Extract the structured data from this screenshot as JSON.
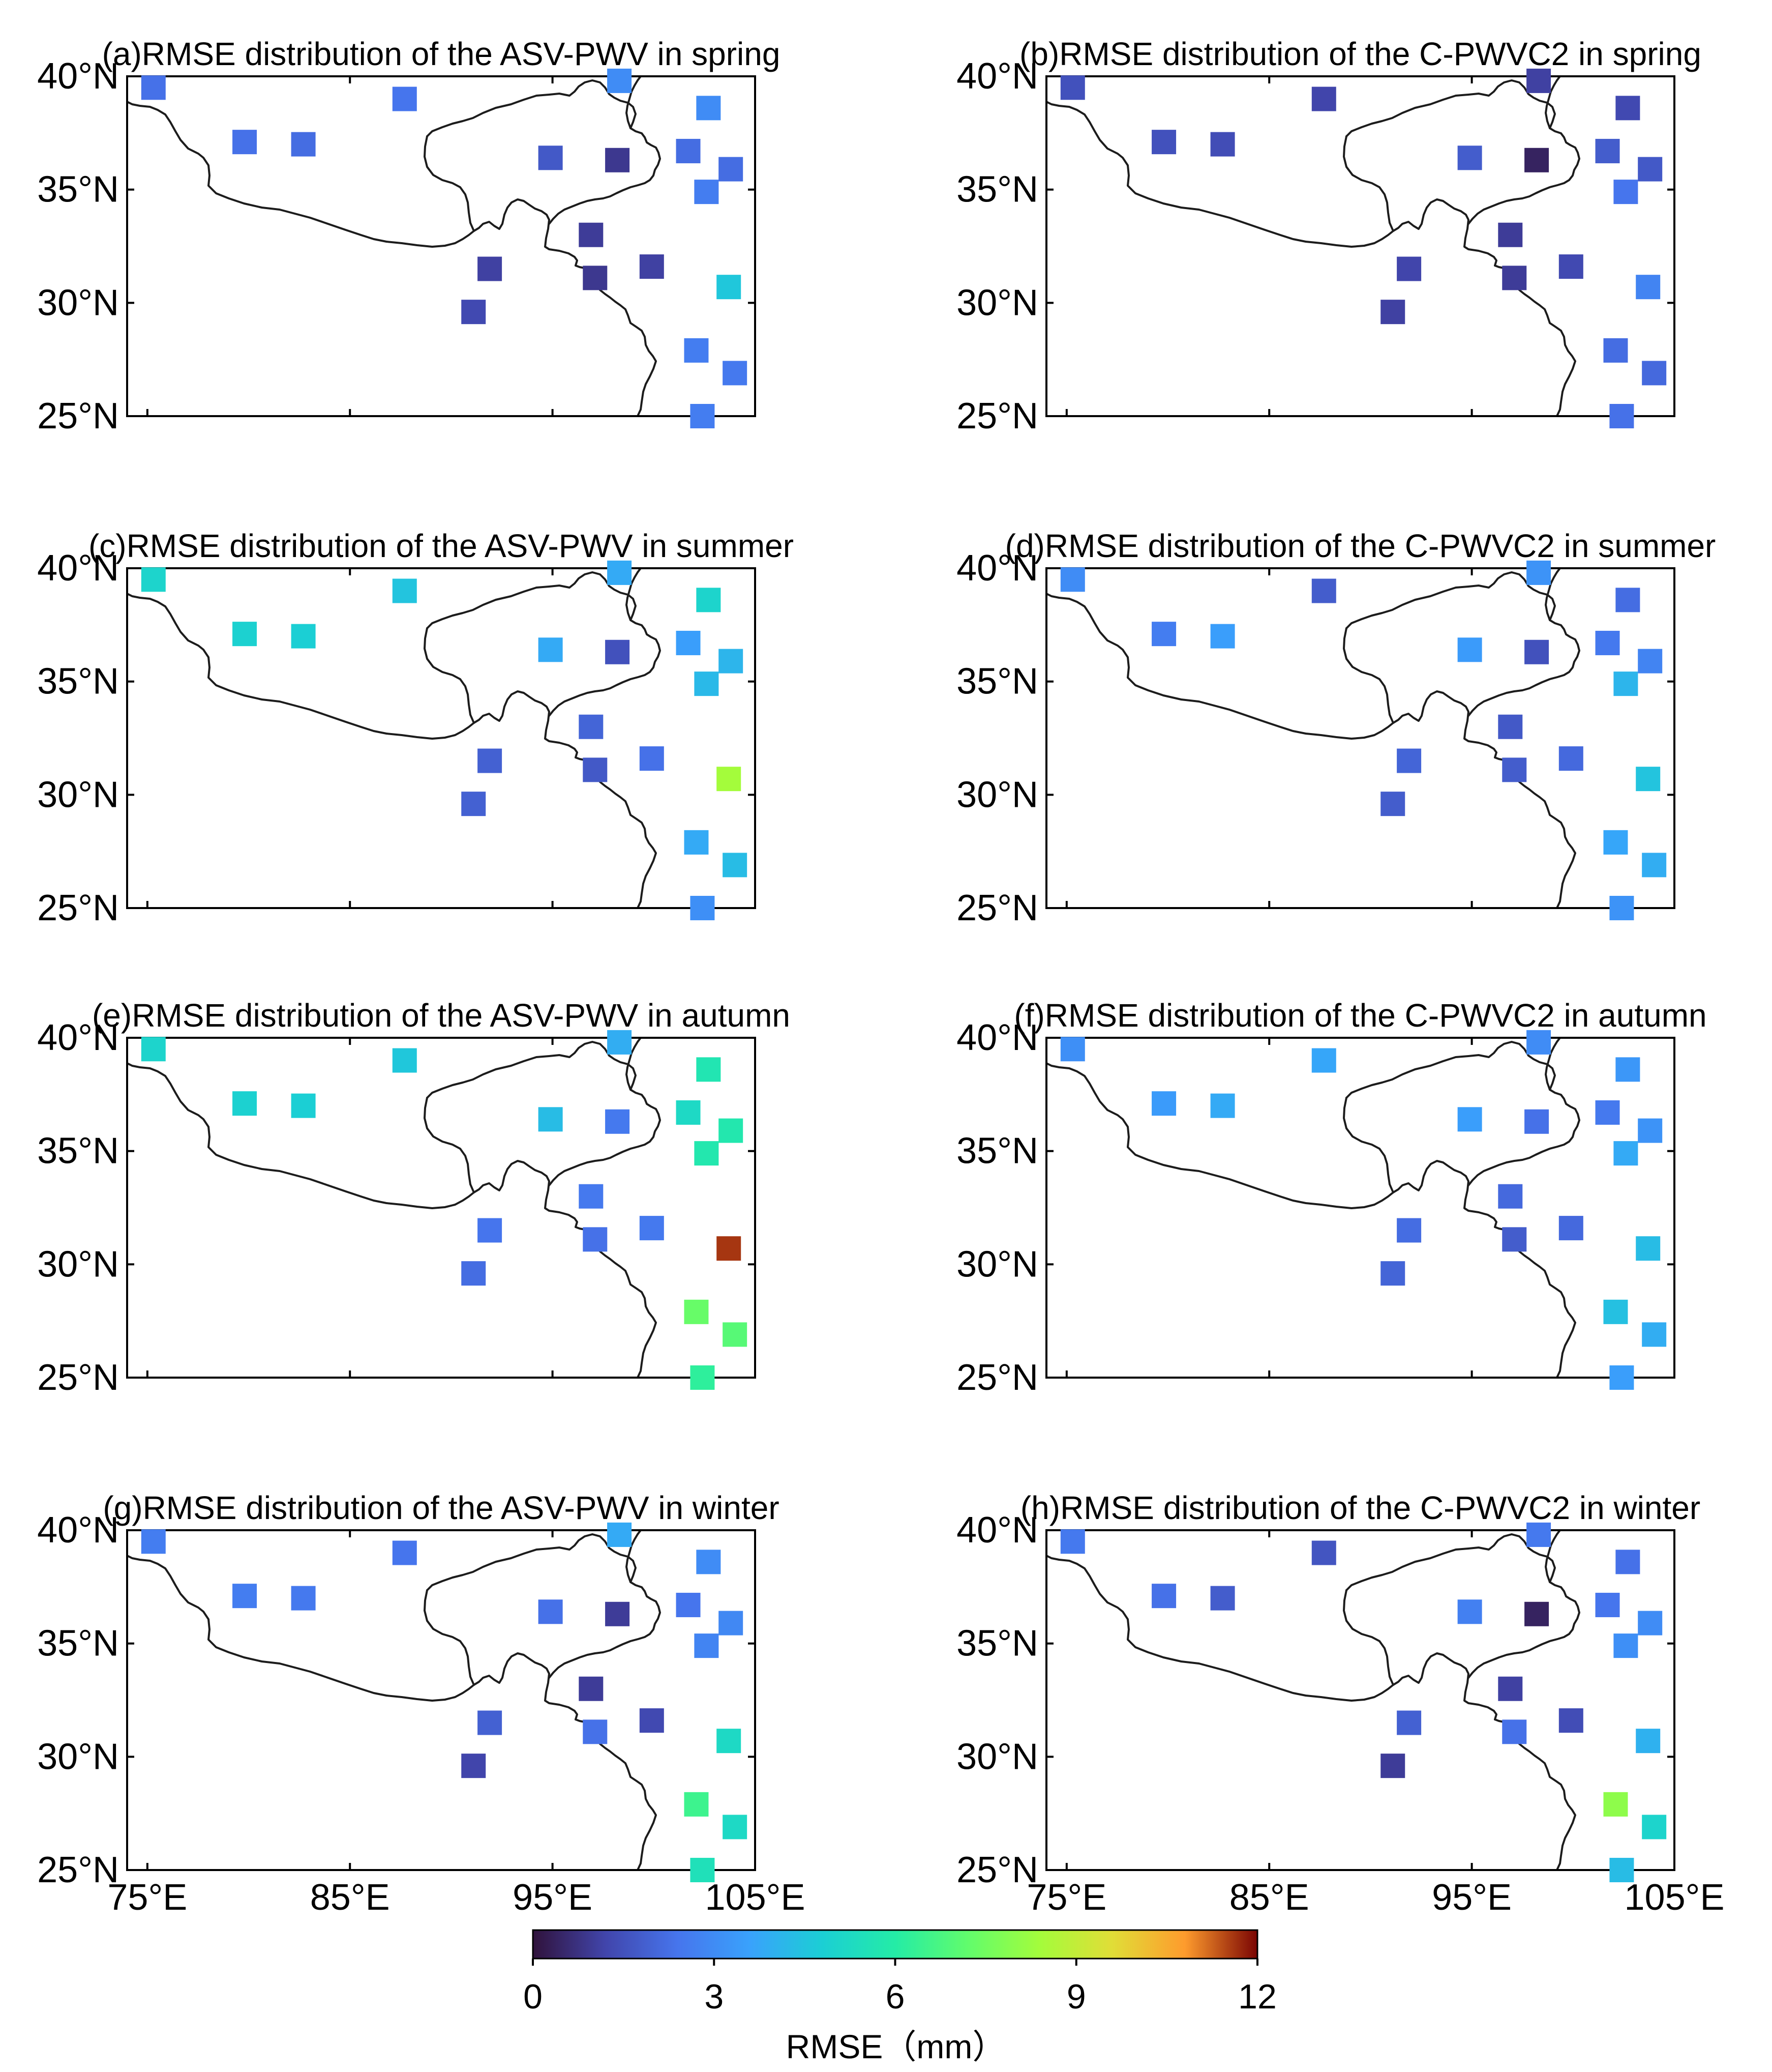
{
  "chart_data": {
    "type": "scatter",
    "description_kind": "station-map-grid",
    "colorbar": {
      "label": "RMSE（mm）",
      "ticks": [
        "0",
        "3",
        "6",
        "9",
        "12"
      ],
      "min": 0,
      "max": 12,
      "colormap": "turbo"
    },
    "lat_ticks": [
      "40°N",
      "35°N",
      "30°N",
      "25°N"
    ],
    "lon_ticks": [
      "75°E",
      "85°E",
      "95°E",
      "105°E"
    ],
    "lat_values": [
      40,
      35,
      30,
      25
    ],
    "lon_values": [
      75,
      85,
      95,
      105
    ],
    "lon_range": [
      74,
      105
    ],
    "lat_range": [
      25,
      40
    ],
    "stations": [
      {
        "lon": 75.3,
        "lat": 39.5
      },
      {
        "lon": 79.8,
        "lat": 37.1
      },
      {
        "lon": 82.7,
        "lat": 37.0
      },
      {
        "lon": 87.7,
        "lat": 39.0
      },
      {
        "lon": 98.3,
        "lat": 39.8
      },
      {
        "lon": 102.7,
        "lat": 38.6
      },
      {
        "lon": 94.9,
        "lat": 36.4
      },
      {
        "lon": 98.2,
        "lat": 36.3
      },
      {
        "lon": 101.7,
        "lat": 36.7
      },
      {
        "lon": 103.8,
        "lat": 35.9
      },
      {
        "lon": 102.6,
        "lat": 34.9
      },
      {
        "lon": 96.9,
        "lat": 33.0
      },
      {
        "lon": 91.9,
        "lat": 31.5
      },
      {
        "lon": 97.1,
        "lat": 31.1
      },
      {
        "lon": 99.9,
        "lat": 31.6
      },
      {
        "lon": 103.7,
        "lat": 30.7
      },
      {
        "lon": 91.1,
        "lat": 29.6
      },
      {
        "lon": 102.1,
        "lat": 27.9
      },
      {
        "lon": 104.0,
        "lat": 26.9
      },
      {
        "lon": 102.4,
        "lat": 25.0
      }
    ],
    "panels": [
      {
        "title": "(a)RMSE distribution of the ASV-PWV in spring",
        "values": [
          2.3,
          2.3,
          2.2,
          2.4,
          3.0,
          3.0,
          1.7,
          0.9,
          2.2,
          2.2,
          2.6,
          1.0,
          1.1,
          0.9,
          1.1,
          4.6,
          1.3,
          2.6,
          2.5,
          2.6
        ]
      },
      {
        "title": "(b)RMSE distribution of the C-PWVC2 in spring",
        "values": [
          1.5,
          1.5,
          1.4,
          1.2,
          1.1,
          1.3,
          1.8,
          0.4,
          1.8,
          1.7,
          2.4,
          1.0,
          1.2,
          1.0,
          1.3,
          2.8,
          1.1,
          2.2,
          2.1,
          2.3
        ]
      },
      {
        "title": "(c)RMSE distribution of the ASV-PWV in summer",
        "values": [
          5.0,
          4.9,
          4.8,
          4.5,
          3.8,
          5.0,
          3.8,
          1.5,
          3.5,
          4.1,
          4.2,
          2.0,
          1.9,
          1.7,
          2.3,
          8.4,
          1.9,
          3.8,
          4.3,
          3.1
        ]
      },
      {
        "title": "(d)RMSE distribution of the C-PWVC2 in summer",
        "values": [
          3.0,
          2.6,
          3.5,
          1.8,
          3.2,
          2.2,
          3.4,
          1.5,
          2.5,
          2.8,
          4.1,
          1.7,
          2.0,
          1.8,
          2.1,
          4.5,
          1.8,
          3.7,
          3.9,
          3.2
        ]
      },
      {
        "title": "(e)RMSE distribution of the ASV-PWV in autumn",
        "values": [
          5.0,
          4.9,
          4.8,
          4.6,
          3.9,
          5.7,
          4.3,
          2.5,
          5.2,
          5.8,
          5.8,
          2.5,
          2.4,
          2.3,
          2.5,
          11.6,
          2.2,
          7.3,
          7.0,
          6.2
        ]
      },
      {
        "title": "(f)RMSE distribution of the C-PWVC2 in autumn",
        "values": [
          3.1,
          3.4,
          3.8,
          3.7,
          3.0,
          3.3,
          3.5,
          2.3,
          2.5,
          3.2,
          3.8,
          2.1,
          2.2,
          1.8,
          2.1,
          4.3,
          2.0,
          4.4,
          3.9,
          3.5
        ]
      },
      {
        "title": "(g)RMSE distribution of the ASV-PWV in winter",
        "values": [
          2.6,
          2.6,
          2.5,
          2.4,
          3.8,
          3.0,
          2.3,
          1.0,
          2.4,
          2.9,
          2.8,
          1.0,
          1.9,
          2.3,
          1.3,
          5.2,
          1.2,
          6.5,
          5.2,
          5.5
        ]
      },
      {
        "title": "(h)RMSE distribution of the C-PWVC2 in winter",
        "values": [
          2.5,
          2.3,
          1.8,
          1.6,
          2.5,
          2.3,
          2.7,
          0.4,
          2.4,
          3.0,
          3.1,
          1.1,
          1.9,
          2.3,
          1.4,
          4.0,
          1.0,
          8.0,
          5.0,
          4.3
        ]
      }
    ]
  }
}
